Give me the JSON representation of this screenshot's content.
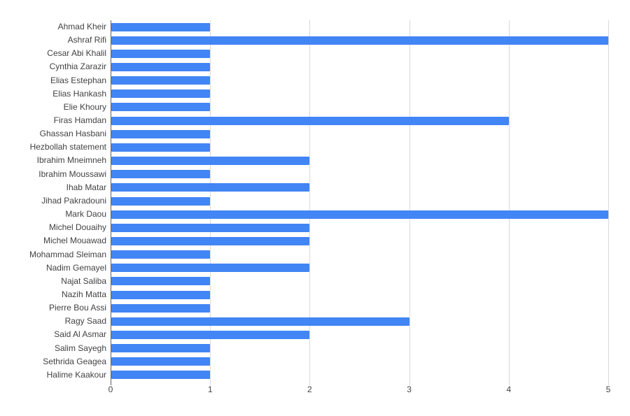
{
  "chart_data": {
    "type": "bar",
    "orientation": "horizontal",
    "title": "",
    "xlabel": "",
    "ylabel": "",
    "xlim": [
      0,
      5
    ],
    "x_ticks": [
      0,
      1,
      2,
      3,
      4,
      5
    ],
    "grid": true,
    "legend": "none",
    "bar_color": "#4285f4",
    "gridline_color": "#d9d9d9",
    "baseline_color": "#616161",
    "category_label_color": "#424242",
    "tick_label_color": "#444444",
    "categories": [
      "Ahmad Kheir",
      "Ashraf Rifi",
      "Cesar Abi Khalil",
      "Cynthia Zarazir",
      "Elias Estephan",
      "Elias Hankash",
      "Elie Khoury",
      "Firas Hamdan",
      "Ghassan Hasbani",
      "Hezbollah statement",
      "Ibrahim Mneimneh",
      "Ibrahim Moussawi",
      "Ihab Matar",
      "Jihad Pakradouni",
      "Mark Daou",
      "Michel Douaihy",
      "Michel Mouawad",
      "Mohammad Sleiman",
      "Nadim Gemayel",
      "Najat Saliba",
      "Nazih Matta",
      "Pierre Bou Assi",
      "Ragy Saad",
      "Said Al Asmar",
      "Salim Sayegh",
      "Sethrida Geagea",
      "Halime Kaakour"
    ],
    "values": [
      1,
      5,
      1,
      1,
      1,
      1,
      1,
      4,
      1,
      1,
      2,
      1,
      2,
      1,
      5,
      2,
      2,
      1,
      2,
      1,
      1,
      1,
      3,
      2,
      1,
      1,
      1
    ]
  }
}
